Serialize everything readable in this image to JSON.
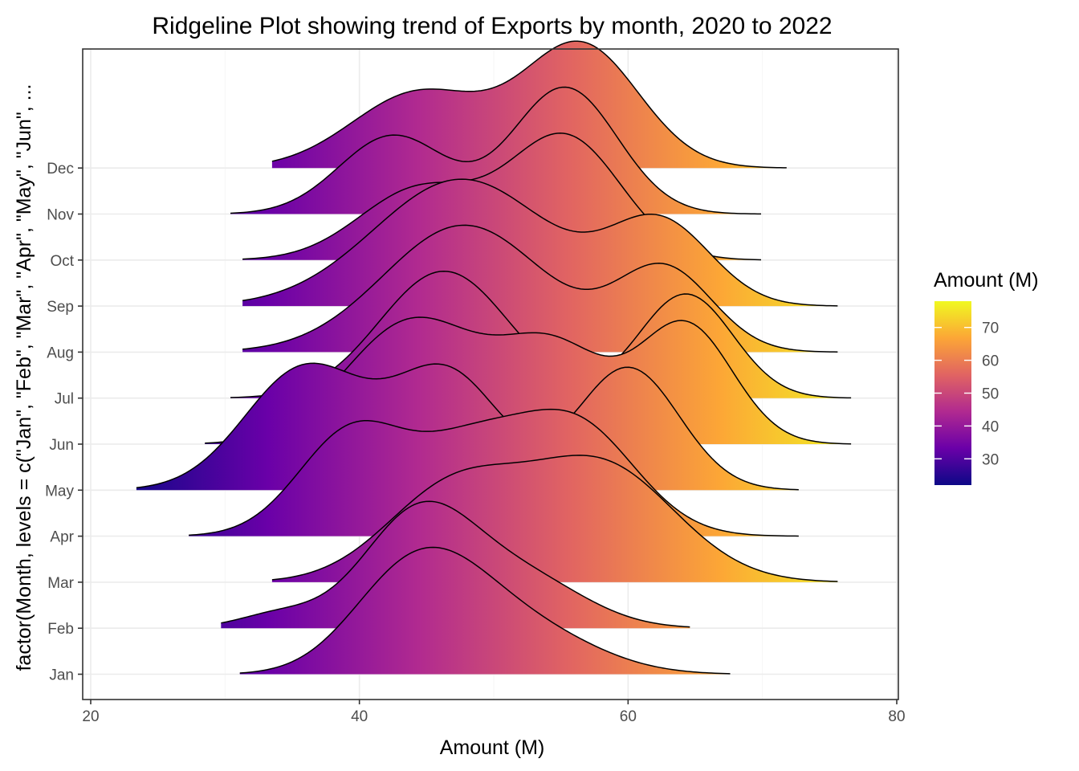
{
  "chart_data": {
    "type": "ridgeline",
    "title": "Ridgeline Plot showing trend of Exports by month, 2020 to 2022",
    "xlabel": "Amount (M)",
    "ylabel": "factor(Month, levels = c(\"Jan\", \"Feb\", \"Mar\", \"Apr\", \"May\", \"Jun\", ...",
    "xlim": [
      20,
      80
    ],
    "x_ticks": [
      20,
      40,
      60,
      80
    ],
    "categories": [
      "Jan",
      "Feb",
      "Mar",
      "Apr",
      "May",
      "Jun",
      "Jul",
      "Aug",
      "Sep",
      "Oct",
      "Nov",
      "Dec"
    ],
    "grid": true,
    "legend": {
      "title": "Amount (M)",
      "position": "right",
      "type": "colorbar",
      "range": [
        22,
        78
      ],
      "ticks": [
        30,
        40,
        50,
        60,
        70
      ],
      "colors": [
        "#0d0887",
        "#6a00a8",
        "#b12a90",
        "#e16462",
        "#fca636",
        "#f0f921"
      ]
    },
    "series": [
      {
        "name": "Jan",
        "min": 31.1,
        "max": 67.6,
        "peaks": [
          [
            41.5,
            0.25,
            3.8
          ],
          [
            45.6,
            0.9,
            4.5
          ],
          [
            53,
            0.35,
            5
          ]
        ]
      },
      {
        "name": "Feb",
        "min": 29.7,
        "max": 64.6,
        "peaks": [
          [
            34,
            0.12,
            3
          ],
          [
            44.5,
            1.0,
            4.2
          ],
          [
            52.5,
            0.4,
            4.5
          ]
        ]
      },
      {
        "name": "Mar",
        "min": 33.5,
        "max": 75.6,
        "peaks": [
          [
            47,
            0.72,
            5
          ],
          [
            58,
            0.9,
            5.5
          ]
        ]
      },
      {
        "name": "Apr",
        "min": 27.3,
        "max": 72.7,
        "peaks": [
          [
            39.5,
            0.75,
            4
          ],
          [
            48,
            0.55,
            4
          ],
          [
            56,
            0.8,
            4.5
          ]
        ]
      },
      {
        "name": "May",
        "min": 23.4,
        "max": 72.7,
        "peaks": [
          [
            36,
            1.0,
            4.5
          ],
          [
            46.5,
            0.95,
            4
          ],
          [
            60,
            1.0,
            3.8
          ]
        ]
      },
      {
        "name": "Jun",
        "min": 28.5,
        "max": 76.6,
        "peaks": [
          [
            44,
            1.0,
            5
          ],
          [
            54.5,
            0.75,
            4
          ],
          [
            64.3,
            0.96,
            3.5
          ]
        ]
      },
      {
        "name": "Jul",
        "min": 30.4,
        "max": 76.6,
        "peaks": [
          [
            46.3,
            1.0,
            4.8
          ],
          [
            64.3,
            0.82,
            3.5
          ]
        ]
      },
      {
        "name": "Aug",
        "min": 31.3,
        "max": 75.6,
        "peaks": [
          [
            47.8,
            1.0,
            6
          ],
          [
            62.7,
            0.65,
            3.6
          ]
        ]
      },
      {
        "name": "Sep",
        "min": 31.3,
        "max": 75.6,
        "peaks": [
          [
            47.6,
            1.0,
            6.5
          ],
          [
            62.4,
            0.64,
            3.8
          ]
        ]
      },
      {
        "name": "Oct",
        "min": 31.3,
        "max": 69.9,
        "peaks": [
          [
            44.5,
            0.55,
            4.5
          ],
          [
            55.3,
            0.95,
            4.2
          ]
        ]
      },
      {
        "name": "Nov",
        "min": 30.4,
        "max": 69.9,
        "peaks": [
          [
            42.5,
            0.62,
            4
          ],
          [
            55.3,
            1.0,
            3.9
          ]
        ]
      },
      {
        "name": "Dec",
        "min": 33.5,
        "max": 71.8,
        "peaks": [
          [
            44.5,
            0.62,
            5
          ],
          [
            56.5,
            1.0,
            4.3
          ]
        ]
      }
    ]
  }
}
